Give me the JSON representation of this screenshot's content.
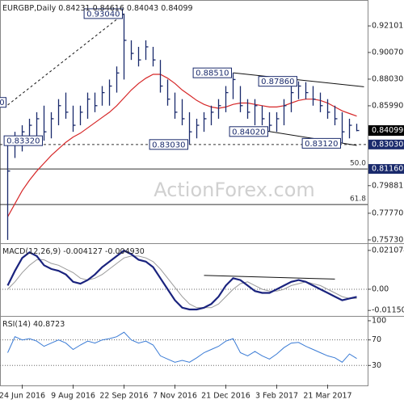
{
  "chart_data": [
    {
      "type": "ohlc",
      "title": "EURGBP,Daily",
      "open_last": 0.84231,
      "categories": [
        null,
        null,
        "24 Jun 2016",
        null,
        null,
        null,
        null,
        null,
        null,
        "9 Aug 2016",
        null,
        null,
        null,
        null,
        null,
        null,
        "22 Sep 2016",
        null,
        null,
        null,
        null,
        null,
        null,
        "7 Nov 2016",
        null,
        null,
        null,
        null,
        null,
        null,
        "21 Dec 2016",
        null,
        null,
        null,
        null,
        null,
        null,
        "3 Feb 2017",
        null,
        null,
        null,
        null,
        null,
        null,
        "21 Mar 2017",
        null,
        null,
        null,
        null
      ],
      "high": [
        0.836,
        0.84,
        0.845,
        0.85,
        0.855,
        0.86,
        0.855,
        0.865,
        0.87,
        0.86,
        0.86,
        0.87,
        0.87,
        0.875,
        0.88,
        0.89,
        0.9304,
        0.91,
        0.905,
        0.91,
        0.905,
        0.895,
        0.88,
        0.87,
        0.865,
        0.855,
        0.85,
        0.855,
        0.86,
        0.865,
        0.875,
        0.8851,
        0.875,
        0.865,
        0.865,
        0.86,
        0.855,
        0.855,
        0.865,
        0.875,
        0.8786,
        0.878,
        0.875,
        0.87,
        0.865,
        0.86,
        0.855,
        0.85,
        0.84616
      ],
      "low": [
        0.7573,
        0.82,
        0.825,
        0.83,
        0.835,
        0.8332,
        0.835,
        0.845,
        0.85,
        0.84,
        0.845,
        0.85,
        0.855,
        0.86,
        0.86,
        0.87,
        0.88,
        0.895,
        0.89,
        0.895,
        0.89,
        0.87,
        0.86,
        0.85,
        0.845,
        0.8303,
        0.835,
        0.84,
        0.845,
        0.85,
        0.855,
        0.865,
        0.855,
        0.85,
        0.845,
        0.845,
        0.8402,
        0.84,
        0.845,
        0.855,
        0.865,
        0.865,
        0.86,
        0.855,
        0.85,
        0.845,
        0.8312,
        0.835,
        0.84043
      ],
      "close": [
        0.81,
        0.835,
        0.84,
        0.845,
        0.85,
        0.84,
        0.85,
        0.86,
        0.855,
        0.845,
        0.855,
        0.865,
        0.86,
        0.87,
        0.875,
        0.885,
        0.91,
        0.9,
        0.895,
        0.905,
        0.895,
        0.875,
        0.865,
        0.855,
        0.85,
        0.84,
        0.845,
        0.85,
        0.855,
        0.86,
        0.87,
        0.88,
        0.86,
        0.855,
        0.86,
        0.85,
        0.845,
        0.85,
        0.86,
        0.87,
        0.875,
        0.87,
        0.865,
        0.86,
        0.855,
        0.85,
        0.84,
        0.845,
        0.84099
      ],
      "color": "#1a2a6c",
      "ma": {
        "color": "#d62728",
        "values": [
          0.775,
          0.785,
          0.795,
          0.803,
          0.81,
          0.816,
          0.822,
          0.827,
          0.832,
          0.836,
          0.839,
          0.843,
          0.847,
          0.851,
          0.855,
          0.86,
          0.866,
          0.872,
          0.877,
          0.881,
          0.884,
          0.884,
          0.881,
          0.877,
          0.872,
          0.868,
          0.864,
          0.861,
          0.859,
          0.858,
          0.859,
          0.861,
          0.862,
          0.862,
          0.861,
          0.86,
          0.859,
          0.859,
          0.86,
          0.862,
          0.864,
          0.865,
          0.865,
          0.864,
          0.862,
          0.859,
          0.856,
          0.854,
          0.852
        ]
      },
      "ylim": [
        0.7554,
        0.9396
      ],
      "yticks": [
        0.92101,
        {
          "value": 0.9007,
          "label": "0.90070"
        },
        {
          "value": 0.8803,
          "label": "0.88030"
        },
        {
          "value": 0.8599,
          "label": "0.85990"
        },
        0.79881,
        {
          "value": 0.7777,
          "label": "0.77770"
        },
        {
          "value": 0.7573,
          "label": "0.75730"
        }
      ],
      "annotations": [
        {
          "value": 0.8625,
          "label": "0",
          "at": 0
        },
        {
          "value": 0.8332,
          "label": "0.83320",
          "at": 5
        },
        {
          "value": 0.9304,
          "label": "0.93040",
          "at": 16
        },
        {
          "value": 0.8303,
          "label": "0.83030",
          "at": 25
        },
        {
          "value": 0.8851,
          "label": "0.88510",
          "at": 31
        },
        {
          "value": 0.8402,
          "label": "0.84020",
          "at": 36
        },
        {
          "value": 0.8786,
          "label": "0.87860",
          "at": 40
        },
        {
          "value": 0.8312,
          "label": "0.83120",
          "at": 46
        }
      ],
      "levels": [
        {
          "value": 0.8303,
          "label": "0.83030",
          "style": "dashed"
        },
        {
          "value": 0.8116,
          "label": "0.81160",
          "fib": "50.0",
          "style": "solid"
        },
        {
          "value": 0.7844,
          "fib": "61.8",
          "style": "solid"
        }
      ],
      "trendlines": [
        {
          "from": [
            0,
            0.8605
          ],
          "to": [
            16,
            0.9304
          ],
          "style": "dashed"
        },
        {
          "from": [
            31,
            0.8851
          ],
          "to": [
            49,
            0.8745
          ],
          "style": "solid"
        },
        {
          "from": [
            32,
            0.8438
          ],
          "to": [
            48,
            0.8296
          ],
          "style": "solid"
        }
      ],
      "watermark": "ActionForex.com"
    },
    {
      "type": "line",
      "title": "MACD(12,26,9)",
      "series": [
        {
          "color": "#1a237e",
          "width": 2.2,
          "values": [
            0.002,
            0.01,
            0.017,
            0.02,
            0.018,
            0.013,
            0.011,
            0.01,
            0.008,
            0.004,
            0.003,
            0.005,
            0.008,
            0.012,
            0.015,
            0.018,
            0.021,
            0.019,
            0.016,
            0.015,
            0.012,
            0.006,
            0,
            -0.006,
            -0.01,
            -0.011,
            -0.011,
            -0.01,
            -0.008,
            -0.004,
            0.002,
            0.006,
            0.005,
            0.002,
            -0.001,
            -0.002,
            -0.002,
            0,
            0.002,
            0.004,
            0.005,
            0.004,
            0.002,
            0,
            -0.002,
            -0.004,
            -0.006,
            -0.005,
            -0.004127
          ]
        },
        {
          "color": "#9a9a9a",
          "width": 1,
          "last_label": "-0.004930",
          "values": [
            0,
            0.004,
            0.009,
            0.013,
            0.016,
            0.016,
            0.014,
            0.013,
            0.011,
            0.009,
            0.006,
            0.005,
            0.006,
            0.008,
            0.011,
            0.014,
            0.017,
            0.018,
            0.018,
            0.017,
            0.015,
            0.011,
            0.006,
            0.001,
            -0.004,
            -0.008,
            -0.01,
            -0.01,
            -0.01,
            -0.008,
            -0.004,
            0,
            0.003,
            0.004,
            0.002,
            0,
            -0.001,
            -0.001,
            0,
            0.002,
            0.003,
            0.004,
            0.003,
            0.002,
            0,
            -0.002,
            -0.004,
            -0.005,
            -0.00493
          ]
        }
      ],
      "ylim": [
        -0.01405,
        0.0241
      ],
      "yticks": [
        0.021074,
        {
          "value": 0,
          "label": "0.00"
        },
        -0.011507
      ],
      "zero_line": 0,
      "trendlines": [
        {
          "from": [
            27,
            0.0075
          ],
          "to": [
            45,
            0.0055
          ],
          "style": "solid"
        }
      ]
    },
    {
      "type": "line",
      "title": "RSI(14)",
      "series": [
        {
          "color": "#3a7bd5",
          "width": 1,
          "values": [
            50,
            75,
            70,
            72,
            68,
            60,
            65,
            70,
            65,
            55,
            62,
            68,
            65,
            70,
            72,
            75,
            82,
            70,
            65,
            68,
            62,
            45,
            40,
            35,
            38,
            35,
            42,
            50,
            55,
            60,
            68,
            72,
            50,
            45,
            52,
            45,
            40,
            48,
            58,
            65,
            66,
            60,
            55,
            50,
            45,
            42,
            35,
            48,
            40.8723
          ]
        }
      ],
      "ylim": [
        0,
        105
      ],
      "yticks": [
        100,
        70,
        30
      ],
      "guides": [
        70,
        30
      ]
    }
  ]
}
